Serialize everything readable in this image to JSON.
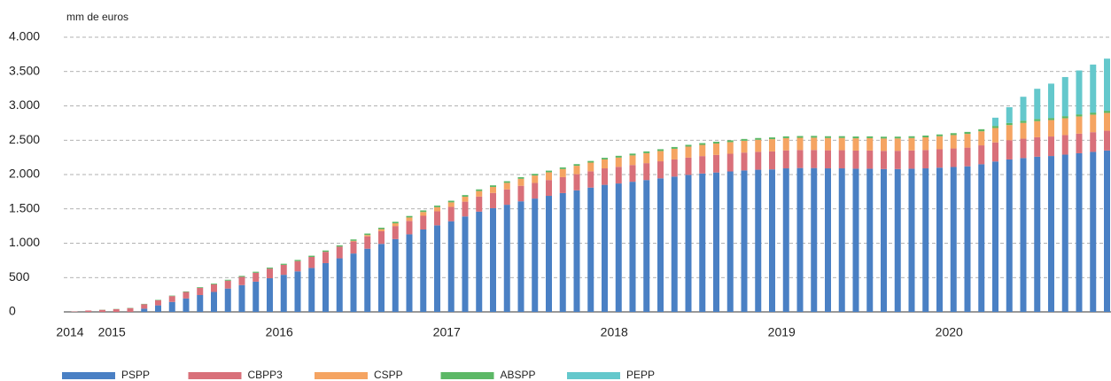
{
  "chart_data": {
    "type": "stacked_bar",
    "ylabel": "mm de euros",
    "categories": [
      "2014",
      null,
      null,
      "2015",
      null,
      null,
      null,
      null,
      null,
      null,
      null,
      null,
      null,
      null,
      null,
      "2016",
      null,
      null,
      null,
      null,
      null,
      null,
      null,
      null,
      null,
      null,
      null,
      "2017",
      null,
      null,
      null,
      null,
      null,
      null,
      null,
      null,
      null,
      null,
      null,
      "2018",
      null,
      null,
      null,
      null,
      null,
      null,
      null,
      null,
      null,
      null,
      null,
      "2019",
      null,
      null,
      null,
      null,
      null,
      null,
      null,
      null,
      null,
      null,
      null,
      "2020",
      null,
      null,
      null,
      null,
      null,
      null,
      null,
      null,
      null,
      null,
      null
    ],
    "series": [
      {
        "name": "PSPP",
        "color": "#4a80c4",
        "values": [
          0,
          0,
          0,
          0,
          0,
          47,
          95,
          145,
          195,
          245,
          290,
          340,
          390,
          440,
          490,
          540,
          590,
          640,
          710,
          780,
          850,
          920,
          990,
          1060,
          1130,
          1200,
          1260,
          1320,
          1390,
          1460,
          1510,
          1560,
          1610,
          1650,
          1690,
          1730,
          1770,
          1810,
          1850,
          1870,
          1895,
          1920,
          1945,
          1970,
          1995,
          2015,
          2030,
          2045,
          2060,
          2070,
          2075,
          2090,
          2095,
          2095,
          2090,
          2090,
          2085,
          2085,
          2080,
          2080,
          2085,
          2090,
          2100,
          2110,
          2120,
          2150,
          2190,
          2220,
          2240,
          2260,
          2270,
          2290,
          2310,
          2330,
          2350
        ]
      },
      {
        "name": "CBPP3",
        "color": "#d9707a",
        "values": [
          5,
          20,
          30,
          40,
          55,
          65,
          75,
          85,
          95,
          105,
          110,
          115,
          120,
          130,
          140,
          145,
          150,
          160,
          165,
          170,
          175,
          180,
          185,
          190,
          195,
          200,
          205,
          210,
          215,
          220,
          222,
          224,
          226,
          228,
          230,
          232,
          235,
          237,
          240,
          242,
          244,
          246,
          248,
          250,
          252,
          254,
          256,
          258,
          260,
          261,
          262,
          262,
          262,
          263,
          263,
          264,
          264,
          265,
          265,
          266,
          266,
          267,
          268,
          270,
          272,
          275,
          278,
          280,
          282,
          283,
          284,
          285,
          286,
          287,
          288
        ]
      },
      {
        "name": "CSPP",
        "color": "#f5a462",
        "values": [
          0,
          0,
          0,
          0,
          0,
          0,
          0,
          0,
          0,
          0,
          0,
          0,
          0,
          0,
          0,
          0,
          0,
          0,
          0,
          0,
          10,
          20,
          30,
          40,
          50,
          55,
          60,
          65,
          72,
          80,
          87,
          95,
          102,
          108,
          113,
          118,
          123,
          127,
          130,
          135,
          140,
          145,
          150,
          155,
          160,
          163,
          166,
          169,
          172,
          175,
          178,
          178,
          178,
          179,
          179,
          179,
          179,
          180,
          180,
          180,
          181,
          185,
          190,
          195,
          200,
          205,
          210,
          220,
          230,
          235,
          240,
          245,
          250,
          255,
          260
        ]
      },
      {
        "name": "ABSPP",
        "color": "#5cb866",
        "values": [
          0,
          0,
          2,
          3,
          4,
          5,
          6,
          7,
          8,
          10,
          11,
          13,
          14,
          15,
          15,
          16,
          17,
          18,
          19,
          19,
          20,
          21,
          21,
          22,
          22,
          23,
          23,
          24,
          24,
          24,
          24,
          24,
          24,
          24,
          24,
          24,
          24,
          24,
          24,
          26,
          26,
          26,
          26,
          26,
          26,
          26,
          26,
          26,
          26,
          26,
          26,
          26,
          26,
          26,
          26,
          26,
          26,
          26,
          26,
          26,
          26,
          26,
          26,
          28,
          29,
          30,
          30,
          31,
          31,
          31,
          30,
          30,
          30,
          30,
          30
        ]
      },
      {
        "name": "PEPP",
        "color": "#64c8cc",
        "values": [
          null,
          null,
          null,
          null,
          null,
          null,
          null,
          null,
          null,
          null,
          null,
          null,
          null,
          null,
          null,
          null,
          null,
          null,
          null,
          null,
          null,
          null,
          null,
          null,
          null,
          null,
          null,
          null,
          null,
          null,
          null,
          null,
          null,
          null,
          null,
          null,
          null,
          null,
          null,
          null,
          null,
          null,
          null,
          null,
          null,
          null,
          null,
          null,
          null,
          null,
          null,
          null,
          null,
          null,
          null,
          null,
          null,
          null,
          null,
          null,
          null,
          null,
          null,
          null,
          null,
          null,
          120,
          230,
          350,
          440,
          500,
          570,
          640,
          700,
          760
        ]
      }
    ],
    "ylim": [
      0,
      4000
    ],
    "yticks": [
      0,
      500,
      {
        "value": 1000,
        "label": "1.000"
      },
      {
        "value": 1500,
        "label": "1.500"
      },
      {
        "value": 2000,
        "label": "2.000"
      },
      {
        "value": 2500,
        "label": "2.500"
      },
      {
        "value": 3000,
        "label": "3.000"
      },
      {
        "value": 3500,
        "label": "3.500"
      },
      {
        "value": 4000,
        "label": "4.000"
      }
    ],
    "grid": true,
    "legend": "bottom"
  }
}
